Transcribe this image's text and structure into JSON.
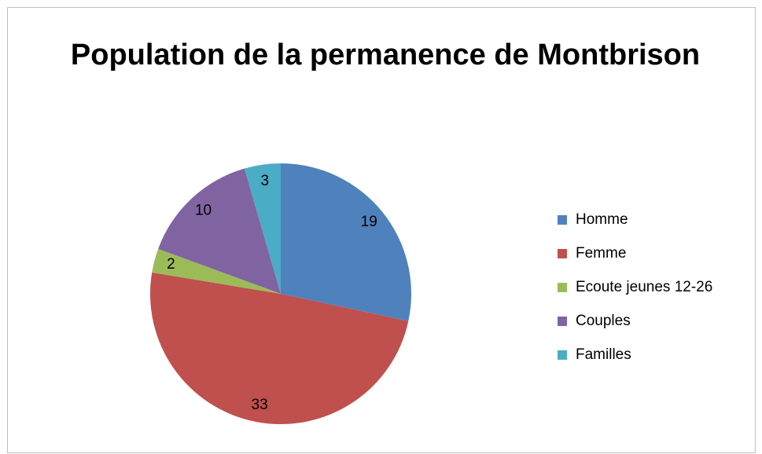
{
  "chart_data": {
    "type": "pie",
    "title": "Population de la permanence de Montbrison",
    "categories": [
      "Homme",
      "Femme",
      "Ecoute jeunes 12-26",
      "Couples",
      "Familles"
    ],
    "values": [
      19,
      33,
      2,
      10,
      3
    ],
    "colors": [
      "#4f81bd",
      "#c0504d",
      "#9bbb59",
      "#8064a2",
      "#4bacc6"
    ],
    "legend": "right"
  }
}
